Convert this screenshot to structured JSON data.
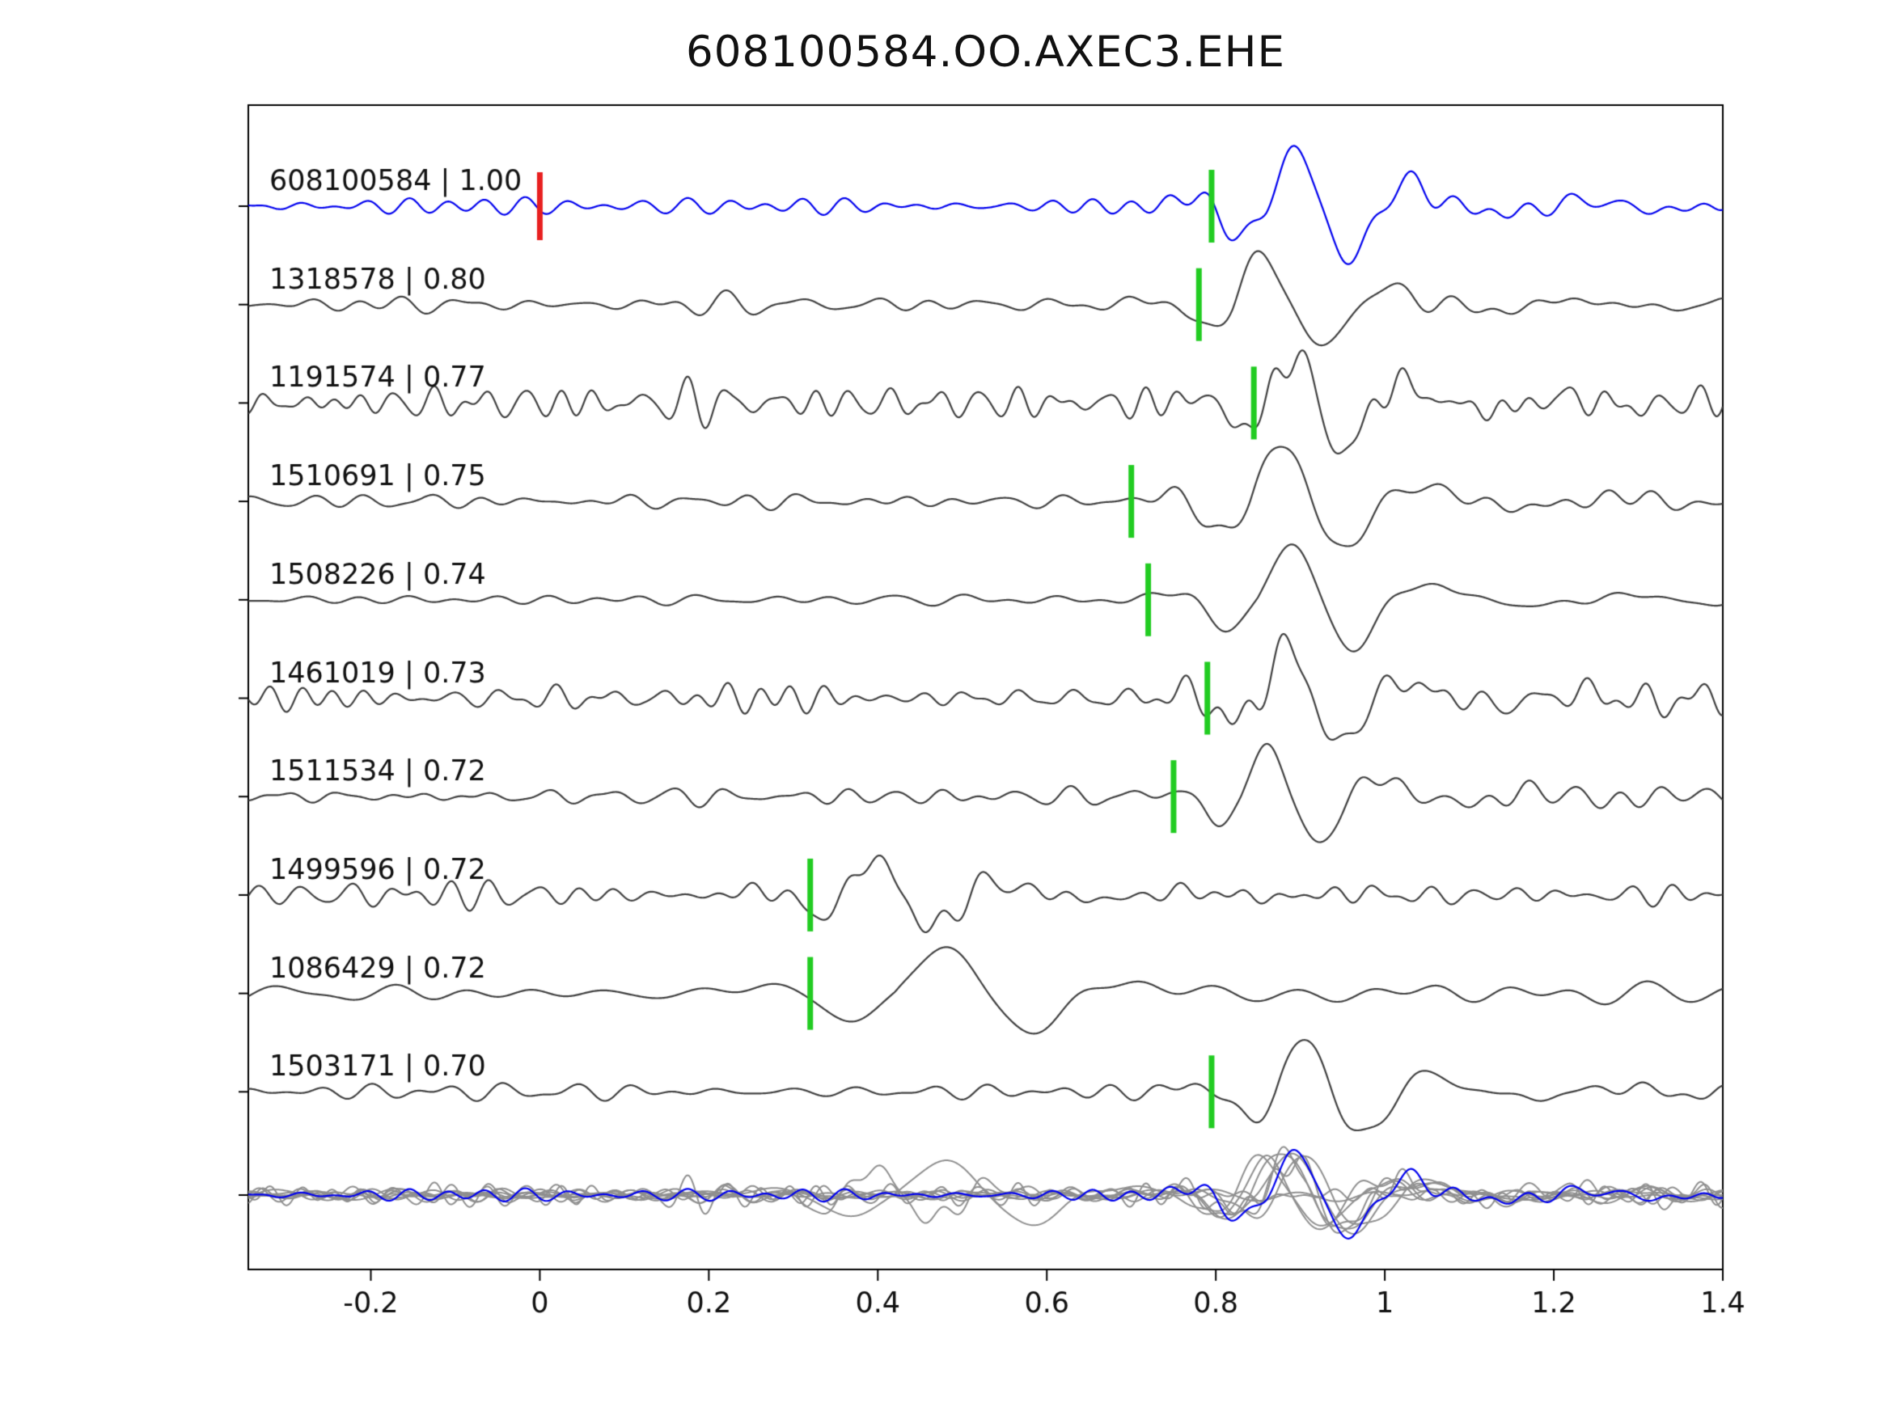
{
  "chart_data": {
    "type": "line",
    "title": "608100584.OO.AXEC3.EHE",
    "xlabel": "",
    "ylabel": "",
    "x_range": [
      -0.345,
      1.4
    ],
    "x_ticks": [
      {
        "v": -0.2,
        "label": "-0.2"
      },
      {
        "v": 0.0,
        "label": "0"
      },
      {
        "v": 0.2,
        "label": "0.2"
      },
      {
        "v": 0.4,
        "label": "0.4"
      },
      {
        "v": 0.6,
        "label": "0.6"
      },
      {
        "v": 0.8,
        "label": "0.8"
      },
      {
        "v": 1.0,
        "label": "1"
      },
      {
        "v": 1.2,
        "label": "1.2"
      },
      {
        "v": 1.4,
        "label": "1.4"
      }
    ],
    "grid": false,
    "legend": false,
    "colors": {
      "template": "#0000ee",
      "trace": "#404040",
      "overlay": "#8f8f8f",
      "pick_marker": "#22cc22",
      "ref_marker": "#e82020",
      "axis": "#000000",
      "text": "#111111"
    },
    "overlay_row": {
      "present": true,
      "amp_scale": 0.75
    },
    "traces": [
      {
        "id": "608100584",
        "similarity": "1.00",
        "label": "608100584 | 1.00",
        "is_template": true,
        "pick_time": 0.795,
        "ref_time": 0.0,
        "synth": {
          "seed": 11,
          "noise_amp": 0.15,
          "noise_f": [
            14,
            30
          ],
          "event_t": 0.86,
          "event_amp": 1.0,
          "event_f": 7.5,
          "sigma": 0.08
        }
      },
      {
        "id": "1318578",
        "similarity": "0.80",
        "label": "1318578 | 0.80",
        "is_template": false,
        "pick_time": 0.78,
        "synth": {
          "seed": 22,
          "noise_amp": 0.13,
          "noise_f": [
            10,
            24
          ],
          "event_t": 0.82,
          "event_amp": 0.9,
          "event_f": 7.0,
          "sigma": 0.07
        }
      },
      {
        "id": "1191574",
        "similarity": "0.77",
        "label": "1191574 | 0.77",
        "is_template": false,
        "pick_time": 0.845,
        "synth": {
          "seed": 33,
          "noise_amp": 0.24,
          "noise_f": [
            16,
            34
          ],
          "event_t": 0.86,
          "event_amp": 0.9,
          "event_f": 8.0,
          "sigma": 0.07
        }
      },
      {
        "id": "1510691",
        "similarity": "0.75",
        "label": "1510691 | 0.75",
        "is_template": false,
        "pick_time": 0.7,
        "synth": {
          "seed": 44,
          "noise_amp": 0.11,
          "noise_f": [
            9,
            22
          ],
          "event_t": 0.84,
          "event_amp": 1.0,
          "event_f": 6.5,
          "sigma": 0.08
        }
      },
      {
        "id": "1508226",
        "similarity": "0.74",
        "label": "1508226 | 0.74",
        "is_template": false,
        "pick_time": 0.72,
        "synth": {
          "seed": 55,
          "noise_amp": 0.1,
          "noise_f": [
            8,
            20
          ],
          "event_t": 0.85,
          "event_amp": 1.0,
          "event_f": 6.5,
          "sigma": 0.08
        }
      },
      {
        "id": "1461019",
        "similarity": "0.73",
        "label": "1461019 | 0.73",
        "is_template": false,
        "pick_time": 0.79,
        "synth": {
          "seed": 66,
          "noise_amp": 0.22,
          "noise_f": [
            14,
            30
          ],
          "event_t": 0.85,
          "event_amp": 0.9,
          "event_f": 7.5,
          "sigma": 0.07
        }
      },
      {
        "id": "1511534",
        "similarity": "0.72",
        "label": "1511534 | 0.72",
        "is_template": false,
        "pick_time": 0.75,
        "synth": {
          "seed": 77,
          "noise_amp": 0.18,
          "noise_f": [
            12,
            28
          ],
          "event_t": 0.83,
          "event_amp": 0.9,
          "event_f": 8.0,
          "sigma": 0.07
        }
      },
      {
        "id": "1499596",
        "similarity": "0.72",
        "label": "1499596 | 0.72",
        "is_template": false,
        "pick_time": 0.32,
        "synth": {
          "seed": 88,
          "noise_amp": 0.2,
          "noise_f": [
            13,
            28
          ],
          "event_t": 0.36,
          "event_amp": 0.65,
          "event_f": 7.0,
          "sigma": 0.08
        }
      },
      {
        "id": "1086429",
        "similarity": "0.72",
        "label": "1086429 | 0.72",
        "is_template": false,
        "pick_time": 0.32,
        "synth": {
          "seed": 99,
          "noise_amp": 0.14,
          "noise_f": [
            6,
            14
          ],
          "event_t": 0.42,
          "event_amp": 0.8,
          "event_f": 4.5,
          "sigma": 0.12
        }
      },
      {
        "id": "1503171",
        "similarity": "0.70",
        "label": "1503171 | 0.70",
        "is_template": false,
        "pick_time": 0.795,
        "synth": {
          "seed": 110,
          "noise_amp": 0.15,
          "noise_f": [
            10,
            24
          ],
          "event_t": 0.87,
          "event_amp": 0.9,
          "event_f": 7.0,
          "sigma": 0.08
        }
      }
    ]
  }
}
